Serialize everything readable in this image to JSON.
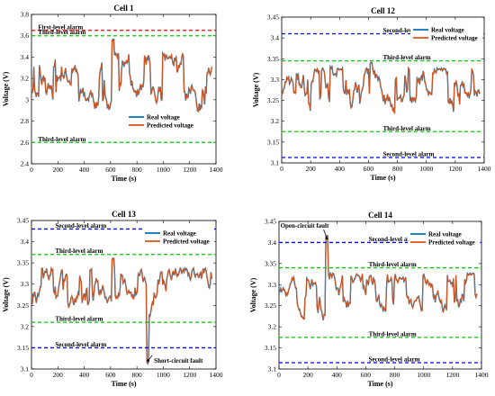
{
  "legend": {
    "real": "Real voltage",
    "predicted": "Predicted voltage"
  },
  "chart_data": [
    {
      "type": "line",
      "title": "Cell 1",
      "xlabel": "Time (s)",
      "ylabel": "Voltage (V)",
      "xlim": [
        0,
        1400
      ],
      "ylim": [
        2.4,
        3.8
      ],
      "xticks": [
        0,
        200,
        400,
        600,
        800,
        1000,
        1200,
        1400
      ],
      "yticks": [
        2.4,
        2.6,
        2.8,
        3.0,
        3.2,
        3.4,
        3.6,
        3.8
      ],
      "ytick_labels": [
        "2.4",
        "2.6",
        "2.8",
        "3",
        "3.2",
        "3.4",
        "3.6",
        "3.8"
      ],
      "series": [
        {
          "name": "Real voltage",
          "color": "#0072BD"
        },
        {
          "name": "Predicted voltage",
          "color": "#D95319"
        }
      ],
      "signal": {
        "base": 3.15,
        "amp": 0.2,
        "spikes": [
          [
            620,
            3.56
          ]
        ]
      },
      "alarms": [
        {
          "label": "First-level alarm",
          "value": 3.65,
          "color": "#ff0000",
          "label_x": 50
        },
        {
          "label": "Third-level alarm",
          "value": 3.6,
          "color": "#00cc00",
          "label_x": 50
        },
        {
          "label": "Third-level alarm",
          "value": 2.6,
          "color": "#00cc00",
          "label_x": 50
        }
      ],
      "legend": {
        "placement": "lower-right"
      }
    },
    {
      "type": "line",
      "title": "Cell 12",
      "xlabel": "Time (s)",
      "ylabel": "Voltage (V)",
      "xlim": [
        0,
        1400
      ],
      "ylim": [
        3.1,
        3.45
      ],
      "xticks": [
        0,
        200,
        400,
        600,
        800,
        1000,
        1200,
        1400
      ],
      "yticks": [
        3.1,
        3.15,
        3.2,
        3.25,
        3.3,
        3.35,
        3.4,
        3.45
      ],
      "ytick_labels": [
        "3.1",
        "3.15",
        "3.2",
        "3.25",
        "3.3",
        "3.35",
        "3.4",
        "3.45"
      ],
      "series": [
        {
          "name": "Real voltage",
          "color": "#0072BD"
        },
        {
          "name": "Predicted voltage",
          "color": "#D95319"
        }
      ],
      "signal": {
        "base": 3.27,
        "amp": 0.04,
        "spikes": [
          [
            340,
            3.33
          ],
          [
            620,
            3.34
          ]
        ]
      },
      "alarms": [
        {
          "label": "Second-level alarm",
          "value": 3.41,
          "color": "#0000ff",
          "label_x": 700
        },
        {
          "label": "Third-level alarm",
          "value": 3.345,
          "color": "#00cc00",
          "label_x": 700
        },
        {
          "label": "Third-level alarm",
          "value": 3.175,
          "color": "#00cc00",
          "label_x": 700
        },
        {
          "label": "Second-level alarm",
          "value": 3.113,
          "color": "#0000ff",
          "label_x": 700
        }
      ],
      "legend": {
        "placement": "top-right"
      }
    },
    {
      "type": "line",
      "title": "Cell 13",
      "xlabel": "Time (s)",
      "ylabel": "Voltage (V)",
      "xlim": [
        0,
        1400
      ],
      "ylim": [
        3.1,
        3.45
      ],
      "xticks": [
        0,
        200,
        400,
        600,
        800,
        1000,
        1200,
        1400
      ],
      "yticks": [
        3.1,
        3.15,
        3.2,
        3.25,
        3.3,
        3.35,
        3.4,
        3.45
      ],
      "ytick_labels": [
        "3.1",
        "3.15",
        "3.2",
        "3.25",
        "3.3",
        "3.35",
        "3.4",
        "3.45"
      ],
      "series": [
        {
          "name": "Real voltage",
          "color": "#0072BD"
        },
        {
          "name": "Predicted voltage",
          "color": "#D95319"
        }
      ],
      "signal": {
        "base": 3.28,
        "amp": 0.04,
        "spikes": [
          [
            620,
            3.36
          ],
          [
            880,
            3.115
          ]
        ]
      },
      "alarms": [
        {
          "label": "Second-level alarm",
          "value": 3.43,
          "color": "#0000ff",
          "label_x": 180
        },
        {
          "label": "Third-level alarm",
          "value": 3.37,
          "color": "#00cc00",
          "label_x": 180
        },
        {
          "label": "Third-level alarm",
          "value": 3.21,
          "color": "#00cc00",
          "label_x": 180
        },
        {
          "label": "Second-level alarm",
          "value": 3.15,
          "color": "#0000ff",
          "label_x": 180
        }
      ],
      "annotation": {
        "text": "Short-circuit fault",
        "point": [
          885,
          3.12
        ],
        "text_pos": [
          930,
          3.115
        ]
      },
      "legend": {
        "placement": "top-right"
      }
    },
    {
      "type": "line",
      "title": "Cell 14",
      "xlabel": "Time (s)",
      "ylabel": "Voltage (V)",
      "xlim": [
        0,
        1400
      ],
      "ylim": [
        3.1,
        3.45
      ],
      "xticks": [
        0,
        200,
        400,
        600,
        800,
        1000,
        1200,
        1400
      ],
      "yticks": [
        3.1,
        3.15,
        3.2,
        3.25,
        3.3,
        3.35,
        3.4,
        3.45
      ],
      "ytick_labels": [
        "3.1",
        "3.15",
        "3.2",
        "3.25",
        "3.3",
        "3.35",
        "3.4",
        "3.45"
      ],
      "series": [
        {
          "name": "Real voltage",
          "color": "#0072BD"
        },
        {
          "name": "Predicted voltage",
          "color": "#D95319"
        }
      ],
      "signal": {
        "base": 3.27,
        "amp": 0.04,
        "spikes": [
          [
            330,
            3.415
          ]
        ]
      },
      "alarms": [
        {
          "label": "Second-level alarm",
          "value": 3.4,
          "color": "#0000ff",
          "label_x": 620
        },
        {
          "label": "Third-level alarm",
          "value": 3.34,
          "color": "#00cc00",
          "label_x": 620
        },
        {
          "label": "Third-level alarm",
          "value": 3.175,
          "color": "#00cc00",
          "label_x": 620
        },
        {
          "label": "Second-level alarm",
          "value": 3.115,
          "color": "#0000ff",
          "label_x": 620
        }
      ],
      "annotation": {
        "text": "Open-circuit fault",
        "point": [
          330,
          3.41
        ],
        "text_pos": [
          10,
          3.435
        ]
      },
      "legend": {
        "placement": "top-right"
      }
    }
  ]
}
